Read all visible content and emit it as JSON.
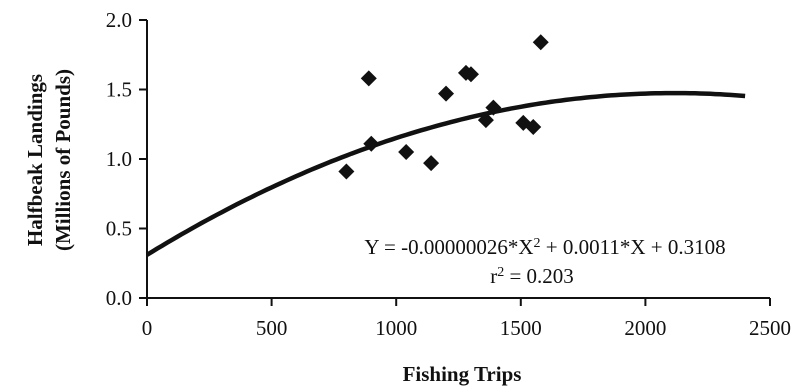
{
  "chart_data": {
    "type": "scatter",
    "title": "",
    "xlabel": "Fishing Trips",
    "ylabel": [
      "Halfbeak Landings",
      "(Millions of Pounds)"
    ],
    "xlim": [
      0,
      2500
    ],
    "ylim": [
      0,
      2.0
    ],
    "x_ticks": [
      "0",
      "500",
      "1000",
      "1500",
      "2000",
      "2500"
    ],
    "y_ticks": [
      "0.0",
      "0.5",
      "1.0",
      "1.5",
      "2.0"
    ],
    "grid": false,
    "series": [
      {
        "type": "scatter",
        "marker": "diamond",
        "x": [
          800,
          890,
          900,
          1040,
          1140,
          1200,
          1280,
          1300,
          1360,
          1390,
          1510,
          1550,
          1580
        ],
        "y": [
          0.91,
          1.58,
          1.11,
          1.05,
          0.97,
          1.47,
          1.62,
          1.61,
          1.28,
          1.37,
          1.26,
          1.23,
          1.84
        ]
      },
      {
        "type": "line",
        "equation": {
          "a": -2.6e-07,
          "b": 0.0011,
          "c": 0.3108
        },
        "x_range": [
          0,
          2400
        ]
      }
    ],
    "annotations": {
      "equation_pre": "Y = -0.00000026*X",
      "equation_sup": "2",
      "equation_post": " + 0.0011*X + 0.3108",
      "r2_pre": "r",
      "r2_sup": "2",
      "r2_post": " = 0.203"
    },
    "colors": {
      "marks": "#111111",
      "axis": "#111111"
    }
  }
}
